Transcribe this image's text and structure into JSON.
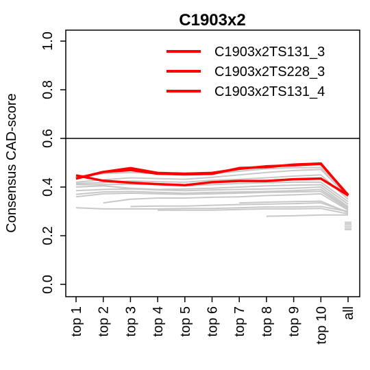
{
  "chart_data": {
    "type": "line",
    "title": "C1903x2",
    "ylabel": "Consensus CAD-score",
    "xlabel": "",
    "ylim": [
      0,
      1
    ],
    "y_ticks": [
      "0.0",
      "0.2",
      "0.4",
      "0.6",
      "0.8",
      "1.0"
    ],
    "y_tick_values": [
      0,
      0.2,
      0.4,
      0.6,
      0.8,
      1.0
    ],
    "categories": [
      "top 1",
      "top 2",
      "top 3",
      "top 4",
      "top 5",
      "top 6",
      "top 7",
      "top 8",
      "top 9",
      "top 10",
      "all"
    ],
    "reference_line": 0.6,
    "legend_position": "top-right",
    "grid": false,
    "colors": {
      "highlight": "#ff0000",
      "background_series": "#c8c8c8",
      "axis": "#000000"
    },
    "highlighted_series": [
      {
        "name": "C1903x2TS131_3",
        "values": [
          0.435,
          0.462,
          0.478,
          0.458,
          0.455,
          0.458,
          0.475,
          0.485,
          0.49,
          0.495,
          0.368
        ]
      },
      {
        "name": "C1903x2TS228_3",
        "values": [
          0.435,
          0.462,
          0.47,
          0.455,
          0.452,
          0.454,
          0.478,
          0.482,
          0.492,
          0.497,
          0.365
        ]
      },
      {
        "name": "C1903x2TS131_4",
        "values": [
          0.448,
          0.426,
          0.418,
          0.412,
          0.408,
          0.42,
          0.425,
          0.425,
          0.432,
          0.435,
          0.366
        ]
      }
    ],
    "background_series": [
      {
        "values": [
          0.445,
          0.455,
          0.46,
          0.455,
          0.455,
          0.455,
          0.465,
          0.475,
          0.48,
          0.48,
          0.37
        ]
      },
      {
        "values": [
          0.42,
          0.43,
          0.438,
          0.435,
          0.432,
          0.44,
          0.45,
          0.46,
          0.468,
          0.472,
          0.36
        ]
      },
      {
        "values": [
          0.415,
          0.418,
          0.425,
          0.422,
          0.42,
          0.428,
          0.432,
          0.438,
          0.445,
          0.45,
          0.35
        ]
      },
      {
        "values": [
          0.41,
          0.41,
          0.412,
          0.41,
          0.405,
          0.41,
          0.415,
          0.418,
          0.42,
          0.42,
          0.34
        ]
      },
      {
        "values": [
          0.4,
          0.405,
          0.395,
          0.39,
          0.392,
          0.395,
          0.4,
          0.405,
          0.408,
          0.41,
          0.33
        ]
      },
      {
        "values": [
          0.385,
          0.39,
          0.392,
          0.388,
          0.385,
          0.388,
          0.39,
          0.392,
          0.395,
          0.4,
          0.32
        ]
      },
      {
        "values": [
          0.37,
          0.38,
          0.382,
          0.378,
          0.375,
          0.378,
          0.38,
          0.382,
          0.385,
          0.39,
          0.315
        ]
      },
      {
        "values": [
          0.36,
          0.372,
          0.375,
          0.372,
          0.37,
          0.372,
          0.375,
          0.378,
          0.38,
          0.382,
          0.31
        ]
      },
      {
        "values": [
          0.315,
          0.31,
          0.31,
          0.31,
          0.312,
          0.312,
          0.315,
          0.318,
          0.318,
          0.32,
          0.3
        ]
      },
      {
        "values": [
          null,
          0.335,
          0.35,
          0.355,
          0.355,
          0.358,
          0.36,
          0.365,
          0.368,
          0.372,
          0.305
        ]
      },
      {
        "values": [
          null,
          null,
          0.32,
          0.322,
          0.322,
          0.325,
          0.328,
          0.33,
          0.332,
          0.335,
          0.298
        ]
      },
      {
        "values": [
          null,
          null,
          null,
          0.305,
          0.305,
          0.305,
          0.308,
          0.31,
          0.31,
          0.312,
          0.29
        ]
      },
      {
        "values": [
          null,
          null,
          null,
          null,
          null,
          null,
          0.335,
          0.338,
          0.34,
          0.342,
          0.295
        ]
      },
      {
        "values": [
          null,
          null,
          null,
          null,
          null,
          null,
          null,
          0.28,
          0.282,
          0.285,
          0.285
        ]
      }
    ],
    "all_markers": [
      0.255,
      0.248,
      0.24,
      0.232,
      0.225
    ]
  }
}
